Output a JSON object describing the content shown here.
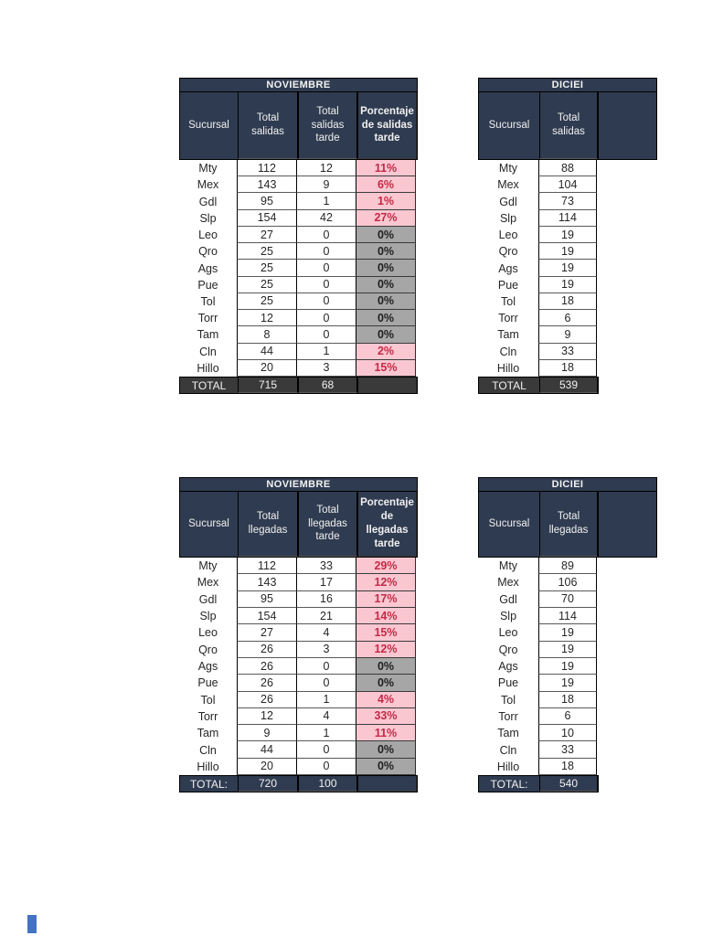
{
  "colors": {
    "header_navy": "#2F3B50",
    "total_dark_gray": "#3A3A3A",
    "pink_fill": "#FAC7D1",
    "pink_text": "#C22A47",
    "gray_fill": "#A6A6A6",
    "corner_mark_blue": "#4472C4"
  },
  "tables": [
    {
      "title": "NOVIEMBRE",
      "columns": [
        "Sucursal",
        "Total salidas",
        "Total salidas tarde",
        "Porcentaje de salidas tarde"
      ],
      "rows": [
        [
          "Mty",
          "112",
          "12",
          "11%"
        ],
        [
          "Mex",
          "143",
          "9",
          "6%"
        ],
        [
          "Gdl",
          "95",
          "1",
          "1%"
        ],
        [
          "Slp",
          "154",
          "42",
          "27%"
        ],
        [
          "Leo",
          "27",
          "0",
          "0%"
        ],
        [
          "Qro",
          "25",
          "0",
          "0%"
        ],
        [
          "Ags",
          "25",
          "0",
          "0%"
        ],
        [
          "Pue",
          "25",
          "0",
          "0%"
        ],
        [
          "Tol",
          "25",
          "0",
          "0%"
        ],
        [
          "Torr",
          "12",
          "0",
          "0%"
        ],
        [
          "Tam",
          "8",
          "0",
          "0%"
        ],
        [
          "Cln",
          "44",
          "1",
          "2%"
        ],
        [
          "Hillo",
          "20",
          "3",
          "15%"
        ]
      ],
      "total": [
        "TOTAL",
        "715",
        "68",
        ""
      ],
      "total_style": "dark"
    },
    {
      "title": "DICIEI",
      "columns": [
        "Sucursal",
        "Total salidas"
      ],
      "rows": [
        [
          "Mty",
          "88"
        ],
        [
          "Mex",
          "104"
        ],
        [
          "Gdl",
          "73"
        ],
        [
          "Slp",
          "114"
        ],
        [
          "Leo",
          "19"
        ],
        [
          "Qro",
          "19"
        ],
        [
          "Ags",
          "19"
        ],
        [
          "Pue",
          "19"
        ],
        [
          "Tol",
          "18"
        ],
        [
          "Torr",
          "6"
        ],
        [
          "Tam",
          "9"
        ],
        [
          "Cln",
          "33"
        ],
        [
          "Hillo",
          "18"
        ]
      ],
      "total": [
        "TOTAL",
        "539"
      ],
      "total_style": "dark"
    },
    {
      "title": "NOVIEMBRE",
      "columns": [
        "Sucursal",
        "Total llegadas",
        "Total llegadas tarde",
        "Porcentaje de llegadas tarde"
      ],
      "rows": [
        [
          "Mty",
          "112",
          "33",
          "29%"
        ],
        [
          "Mex",
          "143",
          "17",
          "12%"
        ],
        [
          "Gdl",
          "95",
          "16",
          "17%"
        ],
        [
          "Slp",
          "154",
          "21",
          "14%"
        ],
        [
          "Leo",
          "27",
          "4",
          "15%"
        ],
        [
          "Qro",
          "26",
          "3",
          "12%"
        ],
        [
          "Ags",
          "26",
          "0",
          "0%"
        ],
        [
          "Pue",
          "26",
          "0",
          "0%"
        ],
        [
          "Tol",
          "26",
          "1",
          "4%"
        ],
        [
          "Torr",
          "12",
          "4",
          "33%"
        ],
        [
          "Tam",
          "9",
          "1",
          "11%"
        ],
        [
          "Cln",
          "44",
          "0",
          "0%"
        ],
        [
          "Hillo",
          "20",
          "0",
          "0%"
        ]
      ],
      "total": [
        "TOTAL:",
        "720",
        "100",
        ""
      ],
      "total_style": "navy"
    },
    {
      "title": "DICIEI",
      "columns": [
        "Sucursal",
        "Total llegadas"
      ],
      "rows": [
        [
          "Mty",
          "89"
        ],
        [
          "Mex",
          "106"
        ],
        [
          "Gdl",
          "70"
        ],
        [
          "Slp",
          "114"
        ],
        [
          "Leo",
          "19"
        ],
        [
          "Qro",
          "19"
        ],
        [
          "Ags",
          "19"
        ],
        [
          "Pue",
          "19"
        ],
        [
          "Tol",
          "18"
        ],
        [
          "Torr",
          "6"
        ],
        [
          "Tam",
          "10"
        ],
        [
          "Cln",
          "33"
        ],
        [
          "Hillo",
          "18"
        ]
      ],
      "total": [
        "TOTAL:",
        "540"
      ],
      "total_style": "navy"
    }
  ]
}
